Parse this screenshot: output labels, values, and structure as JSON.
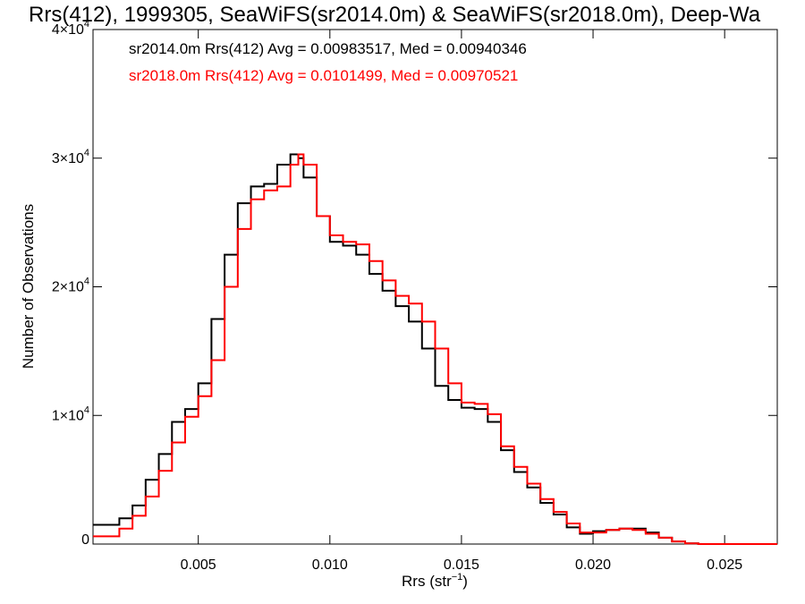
{
  "chart_data": {
    "type": "line",
    "title": "Rrs(412), 1999305, SeaWiFS(sr2014.0m) & SeaWiFS(sr2018.0m), Deep-Wa",
    "xlabel_main": "Rrs (str",
    "xlabel_sup": "−1",
    "xlabel_end": ")",
    "ylabel": "Number of Observations",
    "xlim": [
      0.001,
      0.027
    ],
    "ylim": [
      0,
      40000
    ],
    "x_ticks": [
      0.005,
      0.01,
      0.015,
      0.02,
      0.025
    ],
    "x_tick_labels": [
      "0.005",
      "0.010",
      "0.015",
      "0.020",
      "0.025"
    ],
    "y_ticks": [
      {
        "value": 0,
        "mant": "0",
        "exp": ""
      },
      {
        "value": 10000,
        "mant": "1×10",
        "exp": "4"
      },
      {
        "value": 20000,
        "mant": "2×10",
        "exp": "4"
      },
      {
        "value": 30000,
        "mant": "3×10",
        "exp": "4"
      },
      {
        "value": 40000,
        "mant": "4×10",
        "exp": "4"
      }
    ],
    "legend_placement": "top-left",
    "legend": [
      "sr2014.0m Rrs(412) Avg = 0.00983517, Med = 0.00940346",
      "sr2018.0m Rrs(412) Avg = 0.0101499, Med = 0.00970521"
    ],
    "series": [
      {
        "color": "#000000",
        "x": [
          0.001,
          0.002,
          0.0025,
          0.003,
          0.0035,
          0.004,
          0.0045,
          0.005,
          0.0055,
          0.006,
          0.0065,
          0.007,
          0.0075,
          0.008,
          0.0085,
          0.0088,
          0.009,
          0.0095,
          0.01,
          0.0105,
          0.011,
          0.0115,
          0.012,
          0.0125,
          0.013,
          0.0135,
          0.014,
          0.0145,
          0.015,
          0.0155,
          0.016,
          0.0165,
          0.017,
          0.0175,
          0.018,
          0.0185,
          0.019,
          0.0195,
          0.02,
          0.0205,
          0.021,
          0.0215,
          0.022,
          0.0225,
          0.023,
          0.0235,
          0.024,
          0.025,
          0.026,
          0.027
        ],
        "y": [
          1500,
          2000,
          3000,
          5000,
          7000,
          9500,
          10500,
          12500,
          17500,
          22500,
          26500,
          27800,
          28000,
          29500,
          30300,
          30000,
          28500,
          25500,
          23500,
          23200,
          22500,
          21000,
          19700,
          18500,
          17300,
          15200,
          12300,
          11200,
          10600,
          10500,
          9500,
          7300,
          5600,
          4400,
          3200,
          2300,
          1300,
          800,
          1000,
          1100,
          1200,
          1200,
          900,
          500,
          200,
          50,
          0,
          0,
          0,
          0
        ]
      },
      {
        "color": "#ff0000",
        "x": [
          0.001,
          0.002,
          0.0025,
          0.003,
          0.0035,
          0.004,
          0.0045,
          0.005,
          0.0055,
          0.006,
          0.0065,
          0.007,
          0.0075,
          0.008,
          0.0085,
          0.0088,
          0.009,
          0.0095,
          0.01,
          0.0105,
          0.011,
          0.0115,
          0.012,
          0.0125,
          0.013,
          0.0135,
          0.014,
          0.0145,
          0.015,
          0.0155,
          0.016,
          0.0165,
          0.017,
          0.0175,
          0.018,
          0.0185,
          0.019,
          0.0195,
          0.02,
          0.0205,
          0.021,
          0.0215,
          0.022,
          0.0225,
          0.023,
          0.0235,
          0.024,
          0.025,
          0.026,
          0.027
        ],
        "y": [
          600,
          1200,
          2200,
          3700,
          5700,
          7900,
          9900,
          11500,
          14300,
          20000,
          24500,
          26800,
          27500,
          27800,
          29500,
          30300,
          29500,
          25500,
          24000,
          23500,
          23300,
          22000,
          20500,
          19300,
          18700,
          17300,
          15200,
          12500,
          11000,
          10900,
          10100,
          7600,
          6000,
          4700,
          3500,
          2500,
          1600,
          900,
          900,
          1100,
          1200,
          1100,
          800,
          500,
          200,
          50,
          0,
          0,
          0,
          0
        ]
      }
    ]
  }
}
